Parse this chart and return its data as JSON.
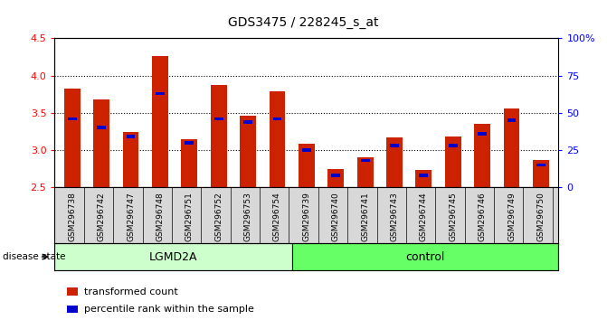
{
  "title": "GDS3475 / 228245_s_at",
  "samples": [
    "GSM296738",
    "GSM296742",
    "GSM296747",
    "GSM296748",
    "GSM296751",
    "GSM296752",
    "GSM296753",
    "GSM296754",
    "GSM296739",
    "GSM296740",
    "GSM296741",
    "GSM296743",
    "GSM296744",
    "GSM296745",
    "GSM296746",
    "GSM296749",
    "GSM296750"
  ],
  "transformed_count": [
    3.82,
    3.68,
    3.24,
    4.26,
    3.15,
    3.88,
    3.46,
    3.79,
    3.08,
    2.74,
    2.9,
    3.17,
    2.73,
    3.18,
    3.35,
    3.56,
    2.86
  ],
  "percentile_rank": [
    46,
    40,
    34,
    63,
    30,
    46,
    44,
    46,
    25,
    8,
    18,
    28,
    8,
    28,
    36,
    45,
    15
  ],
  "ymin": 2.5,
  "ymax": 4.5,
  "y2min": 0,
  "y2max": 100,
  "yticks": [
    2.5,
    3.0,
    3.5,
    4.0,
    4.5
  ],
  "y2ticks": [
    0,
    25,
    50,
    75,
    100
  ],
  "bar_color": "#cc2200",
  "percentile_color": "#0000cc",
  "group1_label": "LGMD2A",
  "group2_label": "control",
  "group1_count": 8,
  "group2_count": 9,
  "group1_color": "#ccffcc",
  "group2_color": "#66ff66",
  "disease_state_label": "disease state",
  "legend_bar_label": "transformed count",
  "legend_pct_label": "percentile rank within the sample",
  "bar_width": 0.55,
  "tick_bg_color": "#d8d8d8",
  "bg_color": "#ffffff"
}
